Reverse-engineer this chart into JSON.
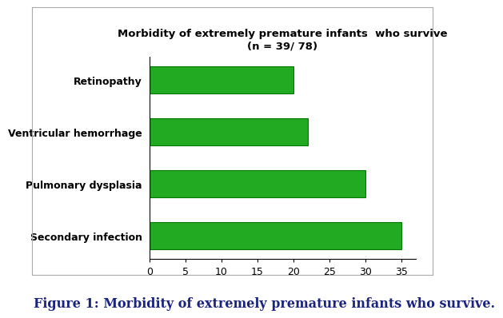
{
  "categories": [
    "Secondary infection",
    "Pulmonary dysplasia",
    "Ventricular hemorrhage",
    "Retinopathy"
  ],
  "values": [
    35,
    30,
    22,
    20
  ],
  "bar_color": "#22aa22",
  "title_line1": "Morbidity of extremely premature infants  who survive",
  "title_line2": "(n = 39/ 78)",
  "xlim": [
    0,
    37
  ],
  "xticks": [
    0,
    5,
    10,
    15,
    20,
    25,
    30,
    35
  ],
  "figure_caption": "Figure 1: Morbidity of extremely premature infants who survive.",
  "background_color": "#ffffff",
  "bar_edge_color": "#007700",
  "title_fontsize": 9.5,
  "caption_fontsize": 11.5,
  "tick_fontsize": 9,
  "label_fontsize": 9,
  "caption_color": "#1a237e"
}
